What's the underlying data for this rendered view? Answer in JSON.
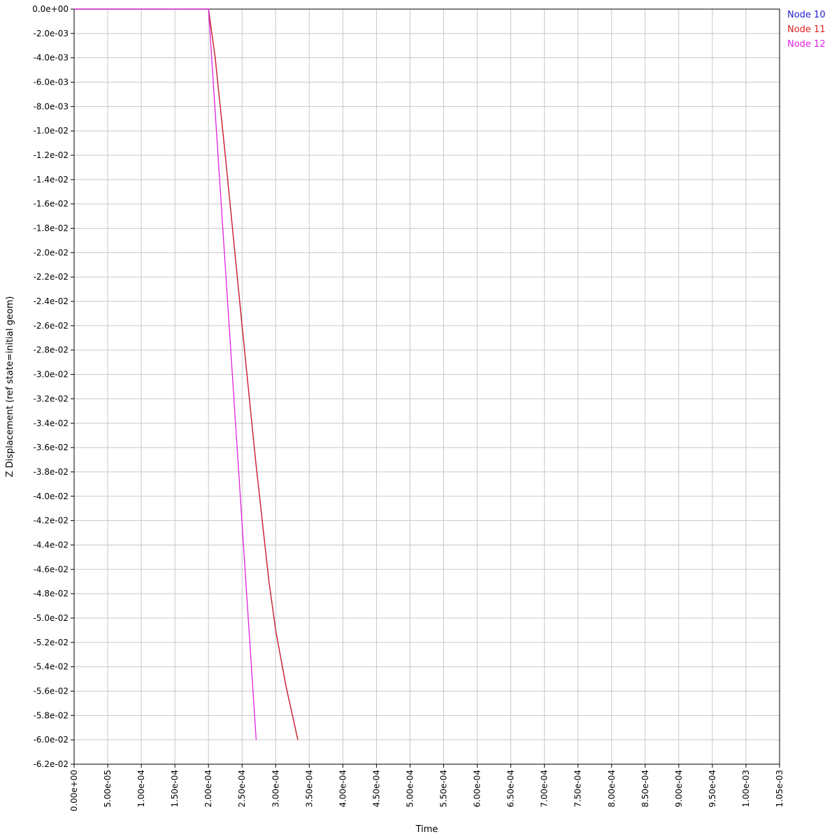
{
  "chart_data": {
    "type": "line",
    "xlabel": "Time",
    "ylabel": "Z Displacement (ref state=initial geom)",
    "xlim": [
      0,
      0.00105
    ],
    "ylim": [
      -0.062,
      0
    ],
    "grid": true,
    "legend_position": "right-top",
    "x_ticks": [
      "0.00e+00",
      "5.00e-05",
      "1.00e-04",
      "1.50e-04",
      "2.00e-04",
      "2.50e-04",
      "3.00e-04",
      "3.50e-04",
      "4.00e-04",
      "4.50e-04",
      "5.00e-04",
      "5.50e-04",
      "6.00e-04",
      "6.50e-04",
      "7.00e-04",
      "7.50e-04",
      "8.00e-04",
      "8.50e-04",
      "9.00e-04",
      "9.50e-04",
      "1.00e-03",
      "1.05e-03"
    ],
    "y_ticks": [
      "0.0e+00",
      "-2.0e-03",
      "-4.0e-03",
      "-6.0e-03",
      "-8.0e-03",
      "-1.0e-02",
      "-1.2e-02",
      "-1.4e-02",
      "-1.6e-02",
      "-1.8e-02",
      "-2.0e-02",
      "-2.2e-02",
      "-2.4e-02",
      "-2.6e-02",
      "-2.8e-02",
      "-3.0e-02",
      "-3.2e-02",
      "-3.4e-02",
      "-3.6e-02",
      "-3.8e-02",
      "-4.0e-02",
      "-4.2e-02",
      "-4.4e-02",
      "-4.6e-02",
      "-4.8e-02",
      "-5.0e-02",
      "-5.2e-02",
      "-5.4e-02",
      "-5.6e-02",
      "-5.8e-02",
      "-6.0e-02",
      "-6.2e-02"
    ],
    "series": [
      {
        "name": "Node 10",
        "color": "#2222cc",
        "x": [
          0,
          0.0002,
          0.00021,
          0.000225,
          0.00025,
          0.00027,
          0.00029,
          0.0003,
          0.000315,
          0.000333
        ],
        "y": [
          0,
          0,
          -0.004,
          -0.012,
          -0.026,
          -0.037,
          -0.047,
          -0.051,
          -0.0555,
          -0.06
        ]
      },
      {
        "name": "Node 11",
        "color": "#dd2222",
        "x": [
          0,
          0.0002,
          0.00021,
          0.000225,
          0.00025,
          0.00027,
          0.00029,
          0.0003,
          0.000315,
          0.000333
        ],
        "y": [
          0,
          0,
          -0.004,
          -0.012,
          -0.026,
          -0.037,
          -0.047,
          -0.051,
          -0.0555,
          -0.06
        ]
      },
      {
        "name": "Node 12",
        "color": "#dd22dd",
        "x": [
          0,
          0.0002,
          0.000271
        ],
        "y": [
          0,
          0,
          -0.06
        ]
      }
    ]
  }
}
